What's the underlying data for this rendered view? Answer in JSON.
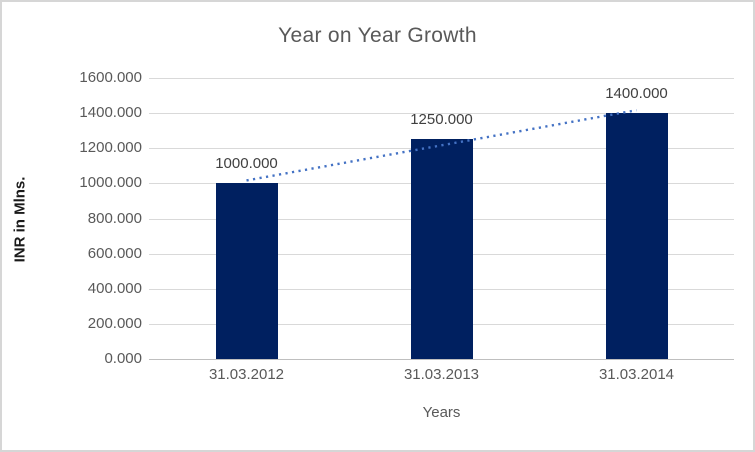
{
  "chart_data": {
    "type": "bar",
    "title": "Year on Year Growth",
    "categories": [
      "31.03.2012",
      "31.03.2013",
      "31.03.2014"
    ],
    "values": [
      1000.0,
      1250.0,
      1400.0
    ],
    "value_labels": [
      "1000.000",
      "1250.000",
      "1400.000"
    ],
    "xlabel": "Years",
    "ylabel": "INR in Mlns.",
    "ylim": [
      0,
      1600
    ],
    "ytick_step": 200,
    "ytick_labels": [
      "0.000",
      "200.000",
      "400.000",
      "600.000",
      "800.000",
      "1000.000",
      "1200.000",
      "1400.000",
      "1600.000"
    ],
    "grid": true,
    "legend": "none",
    "bar_color": "#002060",
    "trendline": {
      "type": "linear",
      "style": "dotted",
      "color": "#4472C4",
      "start_value": 1016.7,
      "end_value": 1416.7
    },
    "colors": {
      "gridline": "#d9d9d9",
      "axis_line": "#bfbfbf",
      "title_text": "#595959",
      "tick_text": "#595959",
      "value_label_text": "#404040",
      "y_axis_title_text": "#1a1a1a",
      "chart_border": "#d6d6d6",
      "background": "#ffffff"
    }
  }
}
